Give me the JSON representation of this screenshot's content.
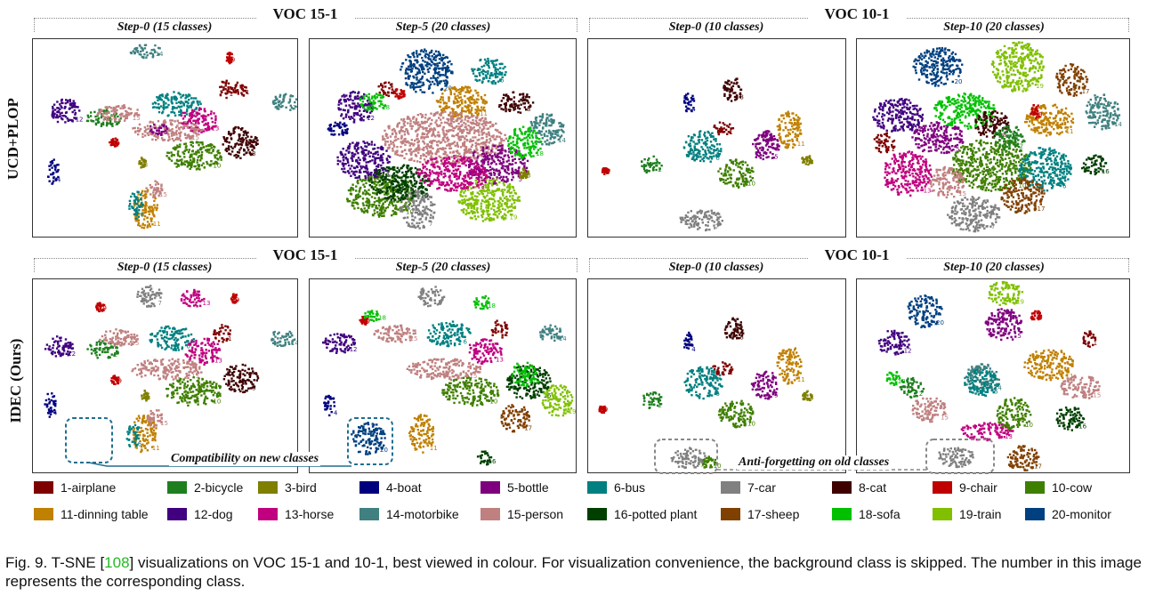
{
  "groups": {
    "voc15": "VOC 15-1",
    "voc10": "VOC 10-1"
  },
  "rows": {
    "top": "UCD+PLOP",
    "bottom": "IDEC (Ours)"
  },
  "panels": {
    "p15_step0": "Step-0 (15 classes)",
    "p15_step5": "Step-5 (20 classes)",
    "p10_step0": "Step-0 (10 classes)",
    "p10_step10": "Step-10 (20 classes)"
  },
  "annotations": {
    "compat": "Compatibility on new classes",
    "anti": "Anti-forgetting on old classes"
  },
  "legend": [
    {
      "label": "1-airplane",
      "color": "#7f0000"
    },
    {
      "label": "2-bicycle",
      "color": "#1f7f1f"
    },
    {
      "label": "3-bird",
      "color": "#7f7f00"
    },
    {
      "label": "4-boat",
      "color": "#00007f"
    },
    {
      "label": "5-bottle",
      "color": "#7f007f"
    },
    {
      "label": "6-bus",
      "color": "#008080"
    },
    {
      "label": "7-car",
      "color": "#808080"
    },
    {
      "label": "8-cat",
      "color": "#3f0000"
    },
    {
      "label": "9-chair",
      "color": "#c00000"
    },
    {
      "label": "10-cow",
      "color": "#3f7f00"
    },
    {
      "label": "11-dinning table",
      "color": "#c08000"
    },
    {
      "label": "12-dog",
      "color": "#40007f"
    },
    {
      "label": "13-horse",
      "color": "#c0007f"
    },
    {
      "label": "14-motorbike",
      "color": "#408080"
    },
    {
      "label": "15-person",
      "color": "#c08080"
    },
    {
      "label": "16-potted plant",
      "color": "#003f00"
    },
    {
      "label": "17-sheep",
      "color": "#804000"
    },
    {
      "label": "18-sofa",
      "color": "#00c000"
    },
    {
      "label": "19-train",
      "color": "#80c000"
    },
    {
      "label": "20-monitor",
      "color": "#004080"
    }
  ],
  "caption": {
    "before": "Fig. 9. T-SNE [",
    "ref": "108",
    "after": "] visualizations on VOC 15-1 and 10-1, best viewed in colour. For visualization convenience, the background class is skipped. The number in this image represents the corresponding class."
  }
}
